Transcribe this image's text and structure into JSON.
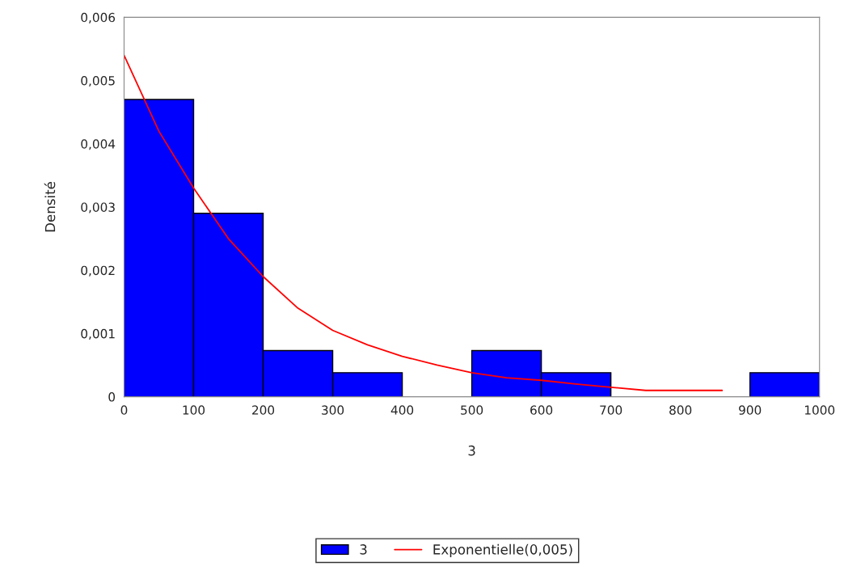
{
  "chart_data": {
    "type": "histogram",
    "xlabel": "3",
    "ylabel": "Densité",
    "bins": [
      0,
      100,
      200,
      300,
      400,
      500,
      600,
      700,
      800,
      900,
      1000
    ],
    "series": [
      {
        "name": "3",
        "color": "#0000ff",
        "values": [
          0.0047,
          0.0029,
          0.00073,
          0.00038,
          0,
          0.00073,
          0.00038,
          0,
          0,
          0.00038
        ]
      },
      {
        "name": "Exponentielle(0,005)",
        "type": "line",
        "color": "#ff0000",
        "x": [
          0,
          50,
          100,
          150,
          200,
          250,
          300,
          350,
          400,
          450,
          500,
          550,
          600,
          650,
          700,
          750,
          800,
          860
        ],
        "values": [
          0.0054,
          0.0042,
          0.0033,
          0.0025,
          0.0019,
          0.0014,
          0.00105,
          0.00082,
          0.00064,
          0.0005,
          0.00038,
          0.0003,
          0.00026,
          0.0002,
          0.00015,
          0.0001,
          0.0001,
          0.0001
        ]
      }
    ],
    "xlim": [
      0,
      1000
    ],
    "xticks": [
      0,
      100,
      200,
      300,
      400,
      500,
      600,
      700,
      800,
      900,
      1000
    ],
    "ylim": [
      0,
      0.006
    ],
    "yticks": [
      0,
      {
        "value": 0.001,
        "label": "0,001"
      },
      {
        "value": 0.002,
        "label": "0,002"
      },
      {
        "value": 0.003,
        "label": "0,003"
      },
      {
        "value": 0.004,
        "label": "0,004"
      },
      {
        "value": 0.005,
        "label": "0,005"
      },
      {
        "value": 0.006,
        "label": "0,006"
      }
    ],
    "grid": false,
    "legend": "bottom",
    "marker": "none",
    "line_style": "solid"
  }
}
